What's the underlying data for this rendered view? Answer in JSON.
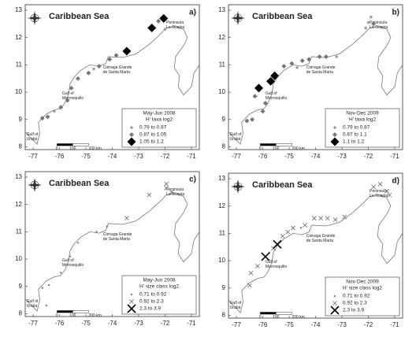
{
  "xlim": [
    -77.3,
    -70.7
  ],
  "ylim": [
    7.9,
    13.2
  ],
  "xticks": [
    -77,
    -76,
    -75,
    -74,
    -73,
    -72,
    -71
  ],
  "yticks": [
    8,
    9,
    10,
    11,
    12,
    13
  ],
  "sea_name": "Caribbean Sea",
  "places": {
    "guajira": [
      "Peninsula",
      "La Guajira"
    ],
    "cienaga": [
      "Ciénaga Grande",
      "de Santa Marta"
    ],
    "morrosquillo": [
      "Gulf of",
      "Morrosquillo"
    ],
    "uraba": [
      "Gulf of",
      "Urabá"
    ]
  },
  "scale_labels": [
    "0",
    "100",
    "200 km"
  ],
  "panels": [
    {
      "letter": "a)",
      "marker": "diamond",
      "legend_title": [
        "May-Jun 2008",
        "H' taxa log2"
      ],
      "groups": [
        {
          "label": "0.79  to  0.87",
          "lon": [
            -72.0,
            -76.2,
            -74.7
          ],
          "lat": [
            12.3,
            9.3,
            10.85
          ]
        },
        {
          "label": "0.87  to  1.05",
          "lon": [
            -73.85,
            -74.1,
            -74.5,
            -74.9,
            -75.3,
            -75.55,
            -75.7,
            -75.95,
            -76.45,
            -76.65,
            -72.25
          ],
          "lat": [
            11.35,
            11.2,
            10.95,
            10.7,
            10.5,
            10.15,
            9.7,
            9.45,
            9.1,
            9.05,
            12.6
          ]
        },
        {
          "label": "1.05  to  1.2",
          "lon": [
            -72.05,
            -72.5,
            -73.45
          ],
          "lat": [
            12.7,
            12.35,
            11.5
          ]
        }
      ]
    },
    {
      "letter": "b)",
      "marker": "diamond",
      "legend_title": [
        "Nov-Dec 2009",
        "H' taxa log2"
      ],
      "groups": [
        {
          "label": "0.79  to  0.87",
          "lon": [
            -72.0,
            -71.9,
            -72.1,
            -73.2,
            -74.7
          ],
          "lat": [
            12.55,
            12.75,
            12.35,
            11.3,
            10.9
          ]
        },
        {
          "label": "0.87  to  1.1",
          "lon": [
            -76.3,
            -75.9,
            -75.2,
            -74.9,
            -74.5,
            -74.25,
            -73.85,
            -73.6,
            -76.0,
            -76.4,
            -76.6,
            -71.8
          ],
          "lat": [
            9.85,
            9.6,
            10.95,
            11.05,
            11.15,
            11.2,
            11.3,
            11.3,
            9.3,
            9.0,
            8.95,
            12.5
          ]
        },
        {
          "label": "1.1  to  1.2",
          "lon": [
            -76.15,
            -75.7,
            -75.55
          ],
          "lat": [
            10.15,
            10.4,
            10.6
          ]
        }
      ]
    },
    {
      "letter": "c)",
      "marker": "x",
      "legend_title": [
        "May-Jun 2008",
        "H' size class log2"
      ],
      "groups": [
        {
          "label": "0.71  to  0.92",
          "lon": [
            -74.6,
            -75.3,
            -75.6,
            -75.95,
            -76.4,
            -76.65,
            -74.2,
            -76.5
          ],
          "lat": [
            11.0,
            10.6,
            10.1,
            9.5,
            9.05,
            8.95,
            11.2,
            8.3
          ]
        },
        {
          "label": "0.92  to  2.3",
          "lon": [
            -73.45,
            -72.6,
            -71.95,
            -71.75,
            -71.95
          ],
          "lat": [
            11.5,
            12.35,
            12.6,
            12.45,
            12.75
          ]
        },
        {
          "label": "2.3  to  3.9",
          "lon": [],
          "lat": []
        }
      ]
    },
    {
      "letter": "d)",
      "marker": "x",
      "legend_title": [
        "Nov-Dec 2009",
        "H' size class log2"
      ],
      "groups": [
        {
          "label": "0.71  to  0.92",
          "lon": [
            -74.55,
            -75.75
          ],
          "lat": [
            11.2,
            10.3
          ]
        },
        {
          "label": "0.92  to  2.3",
          "lon": [
            -75.6,
            -75.25,
            -75.05,
            -74.85,
            -74.4,
            -74.05,
            -73.8,
            -73.55,
            -73.25,
            -72.9,
            -71.8,
            -71.55,
            -71.3,
            -71.2,
            -76.2,
            -76.45,
            -76.5
          ],
          "lat": [
            10.45,
            10.9,
            11.05,
            11.2,
            11.3,
            11.55,
            11.55,
            11.55,
            11.5,
            11.6,
            12.7,
            12.8,
            12.55,
            12.4,
            9.8,
            9.55,
            9.1
          ]
        },
        {
          "label": "2.3  to  3.9",
          "lon": [
            -75.9,
            -75.45
          ],
          "lat": [
            10.15,
            10.6
          ]
        }
      ]
    }
  ]
}
